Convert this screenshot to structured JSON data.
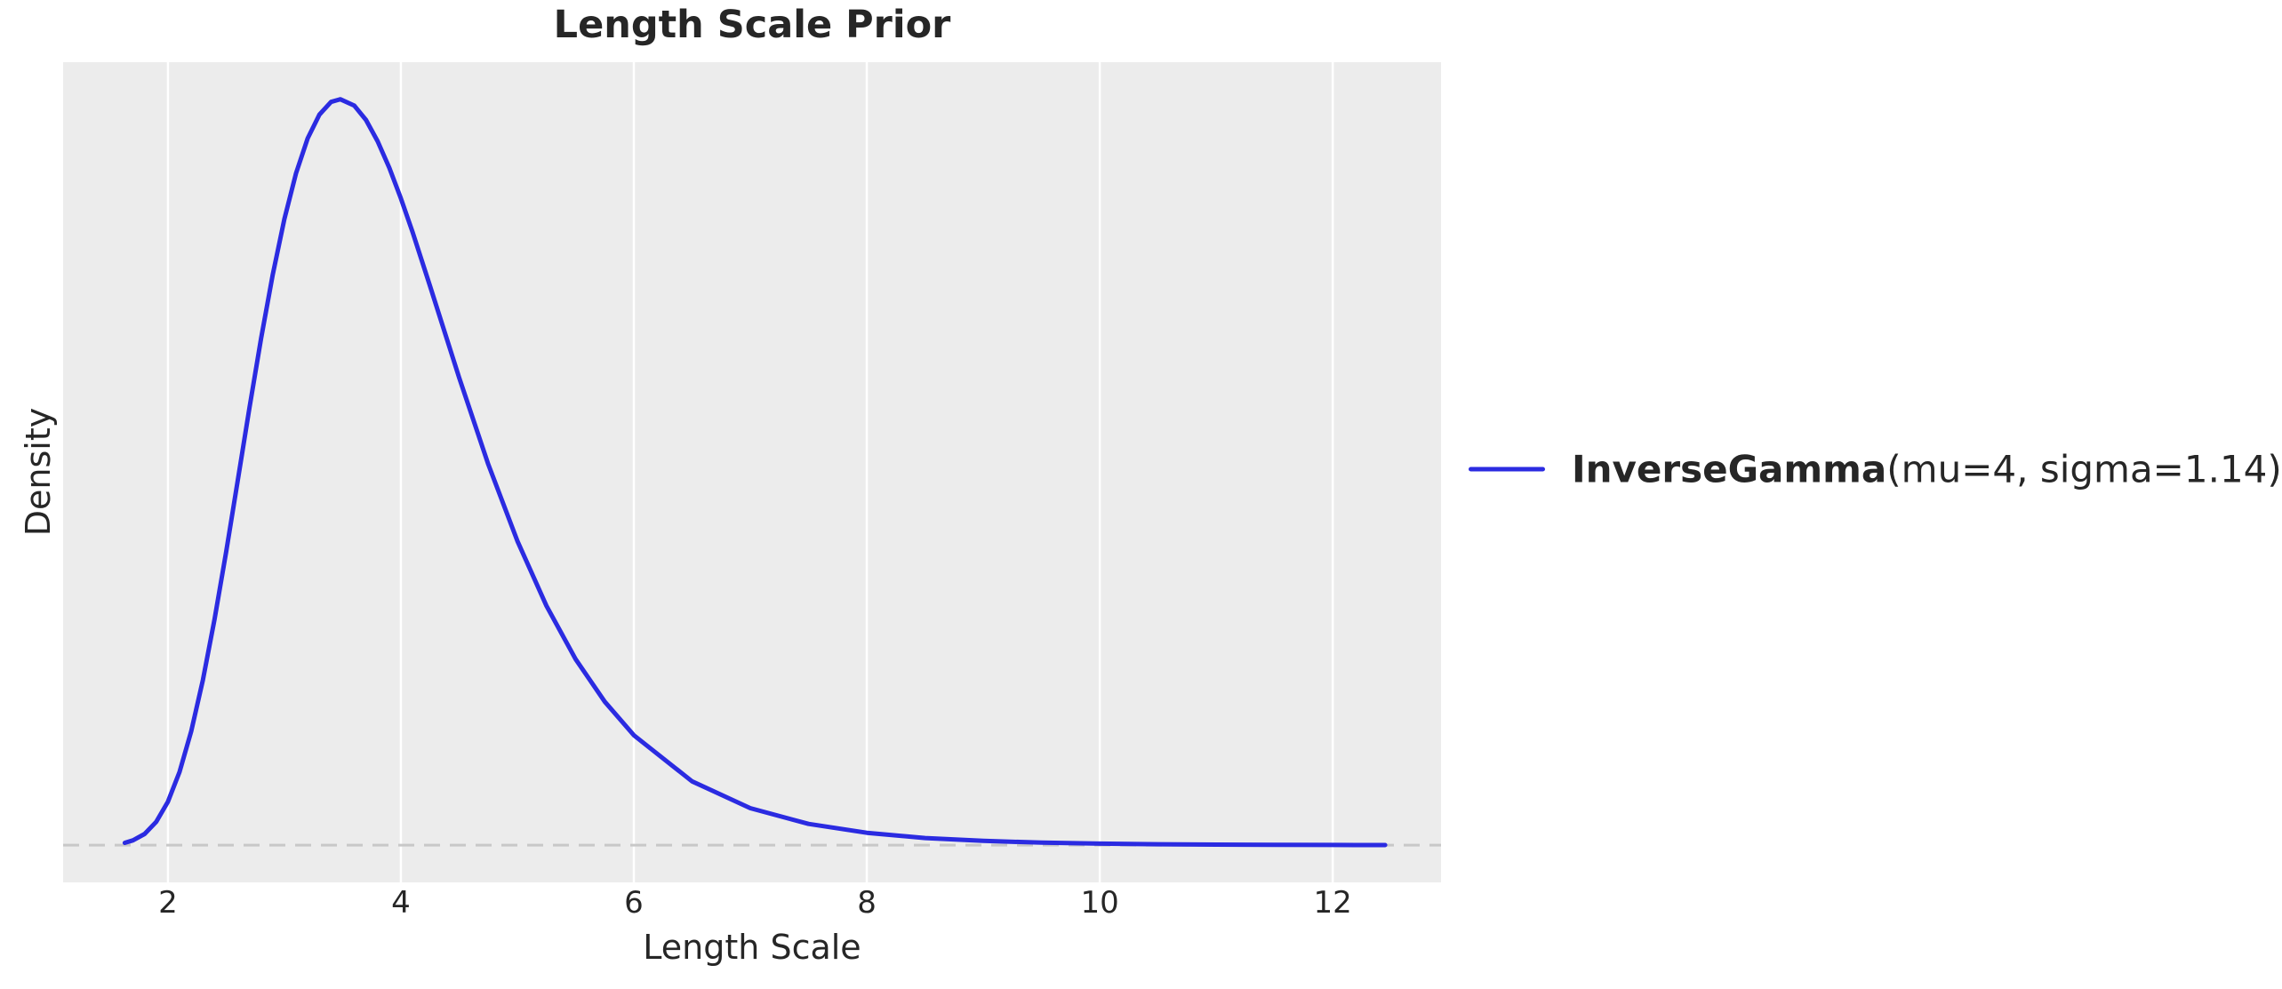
{
  "figure": {
    "background": "#ffffff",
    "plot_background": "#ececec",
    "grid_color": "#ffffff",
    "text_color": "#262626"
  },
  "chart_data": {
    "type": "line",
    "title": "Length Scale Prior",
    "xlabel": "Length Scale",
    "ylabel": "Density",
    "xlim": [
      1.1,
      12.93
    ],
    "ylim": [
      -0.0208,
      0.4378
    ],
    "x_ticks": [
      2,
      4,
      6,
      8,
      10,
      12
    ],
    "y_ticks": [],
    "grid": "vertical-only",
    "legend_position": "center-right-outside",
    "baseline": {
      "y": 0,
      "style": "dashed",
      "color": "#c8c8c8"
    },
    "series": [
      {
        "name": "InverseGamma(mu=4, sigma=1.14)",
        "color": "#2b2be1",
        "line_width": 5,
        "x": [
          1.63,
          1.7,
          1.8,
          1.9,
          2.0,
          2.1,
          2.2,
          2.3,
          2.4,
          2.5,
          2.6,
          2.7,
          2.8,
          2.9,
          3.0,
          3.1,
          3.2,
          3.3,
          3.4,
          3.48,
          3.6,
          3.7,
          3.8,
          3.9,
          4.0,
          4.1,
          4.25,
          4.5,
          4.75,
          5.0,
          5.25,
          5.5,
          5.75,
          6.0,
          6.5,
          7.0,
          7.5,
          8.0,
          8.5,
          9.0,
          9.5,
          10.0,
          10.5,
          11.0,
          11.5,
          12.0,
          12.45
        ],
        "y": [
          0.0013,
          0.0027,
          0.0063,
          0.0131,
          0.0243,
          0.041,
          0.0637,
          0.0923,
          0.1262,
          0.164,
          0.2041,
          0.2445,
          0.2834,
          0.319,
          0.3501,
          0.3757,
          0.3952,
          0.4085,
          0.4156,
          0.4171,
          0.4135,
          0.4055,
          0.3936,
          0.3788,
          0.3616,
          0.3428,
          0.3127,
          0.2614,
          0.213,
          0.1701,
          0.1338,
          0.104,
          0.0802,
          0.0615,
          0.0357,
          0.0207,
          0.0119,
          0.0069,
          0.004,
          0.0024,
          0.0014,
          0.00086,
          0.00052,
          0.00032,
          0.0002,
          0.00013,
          8e-05
        ]
      }
    ]
  },
  "legend": {
    "swatch_color": "#2b2be1",
    "name_bold": "InverseGamma",
    "params": "(mu=4, sigma=1.14)"
  }
}
